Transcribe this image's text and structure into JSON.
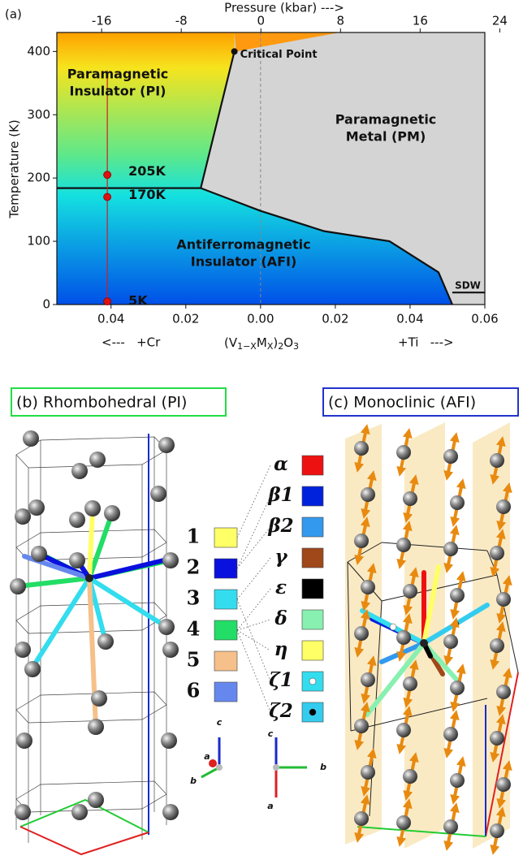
{
  "chart_data": {
    "type": "phase_diagram",
    "panel_label": "(a)",
    "x_label_top": "Pressure (kbar) --->",
    "y_label": "Temperature (K)",
    "xlim": [
      -0.0545,
      0.06
    ],
    "xticks": [
      {
        "value": -0.04,
        "label": "0.04"
      },
      {
        "value": -0.02,
        "label": "0.02"
      },
      {
        "value": 0,
        "label": "0.00"
      },
      0.02,
      0.04,
      0.06
    ],
    "x2lim": [
      -20.5,
      22.5
    ],
    "x2ticks": [
      -16,
      -8,
      0,
      8,
      16,
      24
    ],
    "ylim": [
      0,
      430
    ],
    "yticks": [
      0,
      100,
      200,
      300,
      400
    ],
    "x_annotations": {
      "left": "<---   +Cr",
      "formula": [
        "(V",
        "1−X",
        "M",
        "X",
        ")",
        "2",
        "O",
        "3"
      ],
      "right": "+Ti   --->"
    },
    "regions": [
      {
        "name": [
          "Paramagnetic",
          "Insulator (PI)"
        ],
        "color": "#e8202a"
      },
      {
        "name": [
          "Paramagnetic",
          "Metal (PM)"
        ],
        "color": "#111111"
      },
      {
        "name": [
          "Antiferromagnetic",
          "Insulator (AFI)"
        ],
        "color": "#e8202a"
      },
      {
        "name": [
          "SDW"
        ],
        "color": "#111111"
      }
    ],
    "boundaries": [
      {
        "x": [
          -0.0545,
          -0.016
        ],
        "y": [
          184,
          184
        ]
      },
      {
        "x": [
          -0.016,
          -0.007
        ],
        "y": [
          184,
          400
        ]
      },
      {
        "x": [
          -0.016,
          0,
          0.017,
          0.0345,
          0.0476,
          0.0513
        ],
        "y": [
          184,
          148,
          116,
          100,
          51,
          0
        ]
      },
      {
        "x": [
          0.0513,
          0.06
        ],
        "y": [
          19,
          19
        ]
      }
    ],
    "critical_point": {
      "x": -0.007,
      "y": 400,
      "label": "Critical Point"
    },
    "path_line": {
      "x": [
        -0.041,
        -0.041
      ],
      "y": [
        0,
        370
      ],
      "color": "#cc2020"
    },
    "points": {
      "x": [
        -0.041,
        -0.041,
        -0.041
      ],
      "values": [
        205,
        170,
        5
      ],
      "value_labels": [
        "205K",
        "170K",
        "5K"
      ],
      "color": "#dd1111"
    }
  },
  "panel_b": {
    "title": "(b) Rhombohedral (PI)",
    "frame_color": "#22dd44",
    "axes": [
      "c",
      "a",
      "b"
    ],
    "bonds": [
      {
        "label": "1",
        "color": "#ffff66"
      },
      {
        "label": "2",
        "color": "#0a10dd"
      },
      {
        "label": "3",
        "color": "#33ddee"
      },
      {
        "label": "4",
        "color": "#22dd66"
      },
      {
        "label": "5",
        "color": "#f5c08a"
      },
      {
        "label": "6",
        "color": "#6688ee"
      }
    ]
  },
  "panel_c": {
    "title": "(c) Monoclinic (AFI)",
    "frame_color": "#2233cc",
    "axes": [
      "c",
      "b",
      "a"
    ],
    "bonds": [
      {
        "label": "α",
        "color": "#ee1111"
      },
      {
        "label": "β1",
        "color": "#0022dd"
      },
      {
        "label": "β2",
        "color": "#3399ee"
      },
      {
        "label": "γ",
        "color": "#a0481a"
      },
      {
        "label": "ε",
        "color": "#000000"
      },
      {
        "label": "δ",
        "color": "#88f0b0"
      },
      {
        "label": "η",
        "color": "#ffff66"
      },
      {
        "label": "ζ1",
        "color": "#33ddee",
        "dot": "#ffffff"
      },
      {
        "label": "ζ2",
        "color": "#33ccee",
        "dot": "#000000"
      }
    ]
  }
}
